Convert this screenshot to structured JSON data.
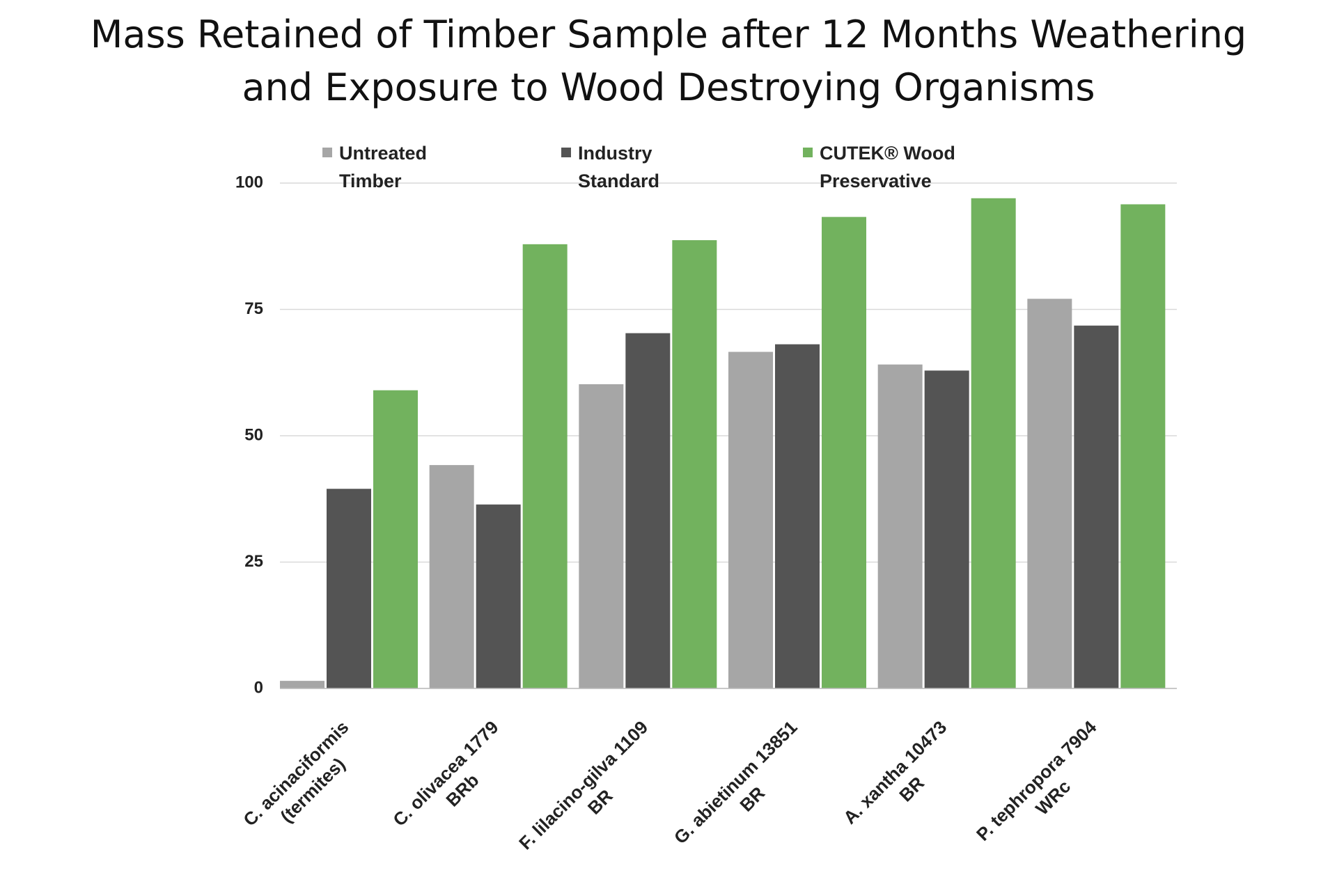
{
  "chart_data": {
    "type": "bar",
    "title": "Mass Retained of Timber Sample after 12 Months Weathering and Exposure to Wood Destroying Organisms",
    "categories": [
      "C. acinaciformis\n(termites)",
      "C. olivacea 1779\nBRb",
      "F. lilacino-gilva 1109\nBR",
      "G. abietinum 13851\nBR",
      "A. xantha 10473\nBR",
      "P. tephropora 7904\nWRc"
    ],
    "series": [
      {
        "name": "Untreated Timber",
        "color": "#a6a6a6",
        "values": [
          1.5,
          44.2,
          60.2,
          66.6,
          64.1,
          77.1
        ]
      },
      {
        "name": "Industry Standard",
        "color": "#545454",
        "values": [
          39.5,
          36.4,
          70.3,
          68.1,
          62.9,
          71.8
        ]
      },
      {
        "name": "CUTEK® Wood Preservative",
        "color": "#72b25e",
        "values": [
          59,
          87.9,
          88.7,
          93.3,
          97.0,
          95.8
        ]
      }
    ],
    "ylim": [
      0,
      100
    ],
    "yticks": [
      0,
      25,
      50,
      75,
      100
    ],
    "grid": true
  }
}
